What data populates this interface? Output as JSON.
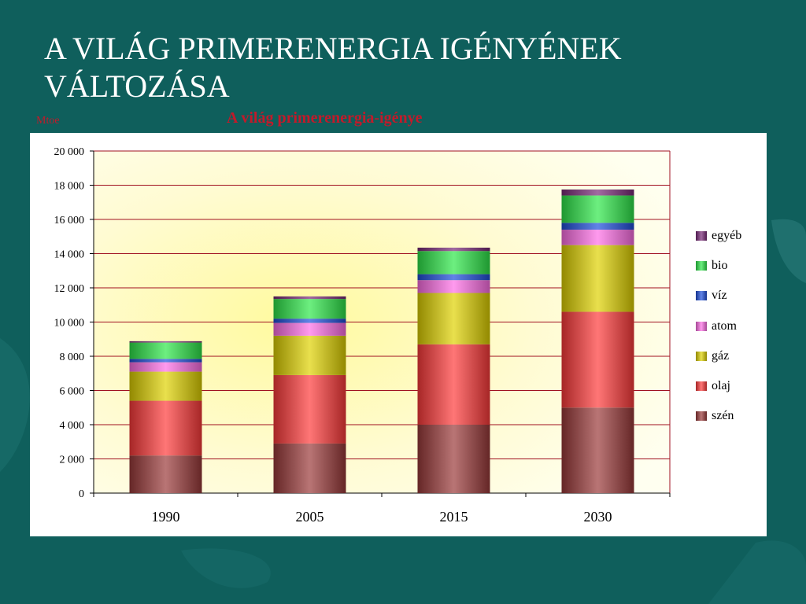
{
  "slide": {
    "title_line1": "A  VILÁG PRIMERENERGIA IGÉNYÉNEK",
    "title_line2": "VÁLTOZÁSA"
  },
  "chart_data": {
    "type": "bar",
    "stacked": true,
    "title": "A világ primerenergia-igénye",
    "ylabel": "Mtoe",
    "xlabel": "",
    "categories": [
      "1990",
      "2005",
      "2015",
      "2030"
    ],
    "ylim": [
      0,
      20000
    ],
    "yticks": [
      0,
      2000,
      4000,
      6000,
      8000,
      10000,
      12000,
      14000,
      16000,
      18000,
      20000
    ],
    "ytick_labels": [
      "0",
      "2 000",
      "4 000",
      "6 000",
      "8 000",
      "10 000",
      "12 000",
      "14 000",
      "16 000",
      "18 000",
      "20 000"
    ],
    "grid": "horizontal",
    "legend_position": "right",
    "series": [
      {
        "name": "szén",
        "color": "#9b3a3a",
        "values": [
          2200,
          2900,
          4000,
          5000
        ]
      },
      {
        "name": "olaj",
        "color": "#ff3b3b",
        "values": [
          3200,
          4000,
          4700,
          5600
        ]
      },
      {
        "name": "gáz",
        "color": "#e0d200",
        "values": [
          1700,
          2300,
          3000,
          3900
        ]
      },
      {
        "name": "atom",
        "color": "#ff6ee6",
        "values": [
          550,
          750,
          750,
          900
        ]
      },
      {
        "name": "víz",
        "color": "#1e4fdc",
        "values": [
          200,
          250,
          350,
          400
        ]
      },
      {
        "name": "bio",
        "color": "#2ee84a",
        "values": [
          950,
          1150,
          1350,
          1600
        ]
      },
      {
        "name": "egyéb",
        "color": "#7a2a78",
        "values": [
          80,
          150,
          200,
          350
        ]
      }
    ]
  }
}
